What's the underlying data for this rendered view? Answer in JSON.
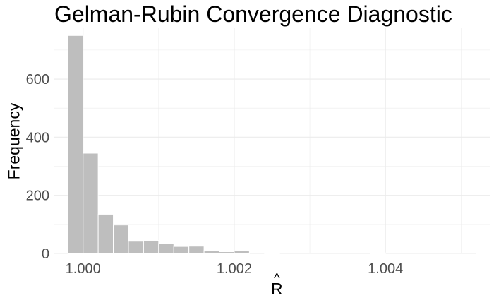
{
  "chart_data": {
    "type": "bar",
    "title": "Gelman-Rubin Convergence Diagnostic",
    "xlabel": "R",
    "xlabel_accent": "^",
    "ylabel": "Frequency",
    "grid": true,
    "legend": "none",
    "bar_color": "#bebebe",
    "gridline_color": "#ebebeb",
    "xlim": [
      0.99962,
      1.00538
    ],
    "ylim": [
      0,
      775
    ],
    "bin_width": 0.0002,
    "x_ticks": [
      {
        "value": 1.0,
        "label": "1.000"
      },
      {
        "value": 1.002,
        "label": "1.002"
      },
      {
        "value": 1.004,
        "label": "1.004"
      }
    ],
    "y_ticks": [
      {
        "value": 0,
        "label": "0"
      },
      {
        "value": 200,
        "label": "200"
      },
      {
        "value": 400,
        "label": "400"
      },
      {
        "value": 600,
        "label": "600"
      }
    ],
    "bins": [
      {
        "x0": 0.9998,
        "x1": 1.0,
        "count": 750
      },
      {
        "x0": 1.0,
        "x1": 1.0002,
        "count": 345
      },
      {
        "x0": 1.0002,
        "x1": 1.0004,
        "count": 135
      },
      {
        "x0": 1.0004,
        "x1": 1.0006,
        "count": 98
      },
      {
        "x0": 1.0006,
        "x1": 1.0008,
        "count": 42
      },
      {
        "x0": 1.0008,
        "x1": 1.001,
        "count": 45
      },
      {
        "x0": 1.001,
        "x1": 1.0012,
        "count": 34
      },
      {
        "x0": 1.0012,
        "x1": 1.0014,
        "count": 24
      },
      {
        "x0": 1.0014,
        "x1": 1.0016,
        "count": 25
      },
      {
        "x0": 1.0016,
        "x1": 1.0018,
        "count": 10
      },
      {
        "x0": 1.0018,
        "x1": 1.002,
        "count": 6
      },
      {
        "x0": 1.002,
        "x1": 1.0022,
        "count": 9
      },
      {
        "x0": 1.0022,
        "x1": 1.0024,
        "count": 0
      },
      {
        "x0": 1.0024,
        "x1": 1.0026,
        "count": 3
      },
      {
        "x0": 1.0026,
        "x1": 1.0028,
        "count": 0
      },
      {
        "x0": 1.0028,
        "x1": 1.003,
        "count": 0
      },
      {
        "x0": 1.003,
        "x1": 1.0032,
        "count": 0
      },
      {
        "x0": 1.0032,
        "x1": 1.0034,
        "count": 0
      },
      {
        "x0": 1.0034,
        "x1": 1.0036,
        "count": 0
      },
      {
        "x0": 1.0036,
        "x1": 1.0038,
        "count": 0
      },
      {
        "x0": 1.0038,
        "x1": 1.004,
        "count": 2
      },
      {
        "x0": 1.004,
        "x1": 1.0042,
        "count": 0
      },
      {
        "x0": 1.0042,
        "x1": 1.0044,
        "count": 0
      },
      {
        "x0": 1.0044,
        "x1": 1.0046,
        "count": 0
      },
      {
        "x0": 1.0046,
        "x1": 1.0048,
        "count": 0
      },
      {
        "x0": 1.0048,
        "x1": 1.005,
        "count": 0
      },
      {
        "x0": 1.005,
        "x1": 1.0052,
        "count": 0
      },
      {
        "x0": 1.0052,
        "x1": 1.0054,
        "count": 1
      }
    ]
  }
}
